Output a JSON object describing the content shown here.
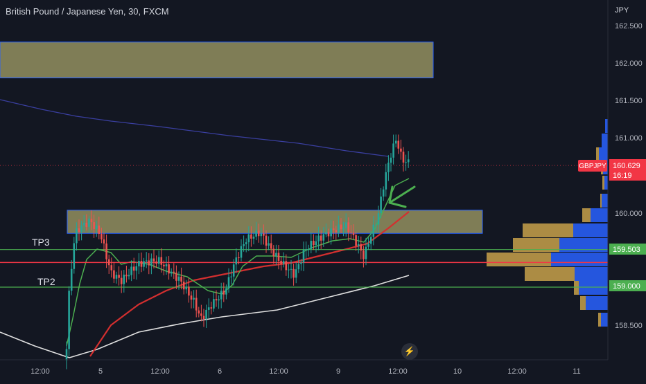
{
  "header": {
    "title": "British Pound / Japanese Yen, 30, FXCM"
  },
  "price_axis": {
    "unit": "JPY",
    "ticks": [
      "162.500",
      "162.000",
      "161.500",
      "161.000",
      "160.000",
      "158.500"
    ]
  },
  "time_axis": {
    "ticks": [
      "12:00",
      "5",
      "12:00",
      "6",
      "12:00",
      "9",
      "12:00",
      "10",
      "12:00",
      "11"
    ]
  },
  "badges": {
    "symbol": "GBPJPY",
    "last_price": "160.629",
    "countdown": "16:19",
    "level_1": "159.503",
    "level_2": "159.000"
  },
  "annotations": {
    "tp3": "TP3",
    "tp2": "TP2"
  },
  "colors": {
    "background": "#131722",
    "bull": "#26a69a",
    "bear": "#ef5350",
    "zone_fill": "#c8c27a",
    "zone_border": "#2962ff",
    "level_green": "#4caf50",
    "level_red": "#f23645",
    "ma_fast": "#4caf50",
    "ma_mid": "#d32f2f",
    "ma_slow": "#e0e0e0",
    "ma_long": "#3a3fa0",
    "vp_up": "#2962ff",
    "vp_down": "#c8a14a"
  },
  "icons": {
    "lightning": "lightning-icon",
    "arrow": "arrow-annotation"
  },
  "chart_data": {
    "type": "candlestick",
    "title": "British Pound / Japanese Yen, 30, FXCM",
    "ylim": [
      158.0,
      162.7
    ],
    "zones": [
      {
        "name": "supply-zone",
        "y_low": 161.8,
        "y_high": 162.28
      },
      {
        "name": "demand-zone",
        "y_low": 159.72,
        "y_high": 160.03
      }
    ],
    "levels": [
      {
        "name": "tp3-line",
        "value": 159.503,
        "label": "TP3"
      },
      {
        "name": "entry-line",
        "value": 159.33,
        "label": ""
      },
      {
        "name": "tp2-line",
        "value": 159.0,
        "label": "TP2"
      }
    ],
    "last_price": 160.629,
    "grid": false
  }
}
